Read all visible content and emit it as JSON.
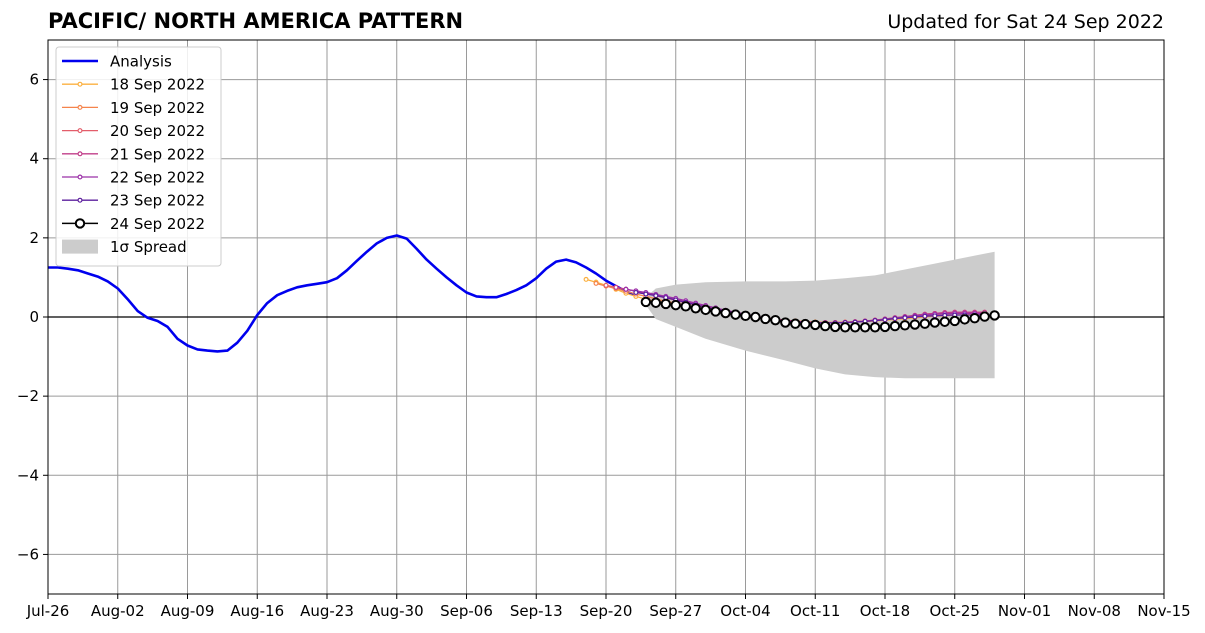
{
  "header": {
    "title": "PACIFIC/ NORTH AMERICA PATTERN",
    "updated": "Updated for Sat 24 Sep 2022"
  },
  "chart_data": {
    "type": "line",
    "title": "PACIFIC/ NORTH AMERICA PATTERN",
    "xlabel": "",
    "ylabel": "",
    "x_axis": {
      "type": "date",
      "range": [
        "2022-07-26",
        "2022-11-15"
      ],
      "tick_labels": [
        "Jul-26",
        "Aug-02",
        "Aug-09",
        "Aug-16",
        "Aug-23",
        "Aug-30",
        "Sep-06",
        "Sep-13",
        "Sep-20",
        "Sep-27",
        "Oct-04",
        "Oct-11",
        "Oct-18",
        "Oct-25",
        "Nov-01",
        "Nov-08",
        "Nov-15"
      ]
    },
    "y_axis": {
      "range": [
        -7,
        7
      ],
      "ticks": [
        6,
        4,
        2,
        0,
        -2,
        -4,
        -6
      ],
      "tick_labels": [
        "6",
        "4",
        "2",
        "0",
        "−2",
        "−4",
        "−6"
      ]
    },
    "grid": true,
    "zero_line": true,
    "legend_position": "top-left",
    "legend": [
      "Analysis",
      "18 Sep 2022",
      "19 Sep 2022",
      "20 Sep 2022",
      "21 Sep 2022",
      "22 Sep 2022",
      "23 Sep 2022",
      "24 Sep 2022",
      "1σ Spread"
    ],
    "series": [
      {
        "name": "Analysis",
        "color": "#0000ee",
        "style": "line",
        "x": [
          "2022-07-26",
          "2022-07-27",
          "2022-07-28",
          "2022-07-29",
          "2022-07-30",
          "2022-07-31",
          "2022-08-01",
          "2022-08-02",
          "2022-08-03",
          "2022-08-04",
          "2022-08-05",
          "2022-08-06",
          "2022-08-07",
          "2022-08-08",
          "2022-08-09",
          "2022-08-10",
          "2022-08-11",
          "2022-08-12",
          "2022-08-13",
          "2022-08-14",
          "2022-08-15",
          "2022-08-16",
          "2022-08-17",
          "2022-08-18",
          "2022-08-19",
          "2022-08-20",
          "2022-08-21",
          "2022-08-22",
          "2022-08-23",
          "2022-08-24",
          "2022-08-25",
          "2022-08-26",
          "2022-08-27",
          "2022-08-28",
          "2022-08-29",
          "2022-08-30",
          "2022-08-31",
          "2022-09-01",
          "2022-09-02",
          "2022-09-03",
          "2022-09-04",
          "2022-09-05",
          "2022-09-06",
          "2022-09-07",
          "2022-09-08",
          "2022-09-09",
          "2022-09-10",
          "2022-09-11",
          "2022-09-12",
          "2022-09-13",
          "2022-09-14",
          "2022-09-15",
          "2022-09-16",
          "2022-09-17",
          "2022-09-18",
          "2022-09-19",
          "2022-09-20",
          "2022-09-21",
          "2022-09-22",
          "2022-09-23"
        ],
        "y": [
          1.25,
          1.25,
          1.22,
          1.18,
          1.1,
          1.02,
          0.9,
          0.72,
          0.45,
          0.15,
          -0.02,
          -0.1,
          -0.25,
          -0.55,
          -0.72,
          -0.82,
          -0.85,
          -0.87,
          -0.85,
          -0.65,
          -0.35,
          0.05,
          0.35,
          0.55,
          0.66,
          0.75,
          0.8,
          0.84,
          0.88,
          0.98,
          1.18,
          1.42,
          1.65,
          1.86,
          2.0,
          2.06,
          1.98,
          1.72,
          1.45,
          1.22,
          1.0,
          0.8,
          0.62,
          0.52,
          0.5,
          0.5,
          0.58,
          0.68,
          0.8,
          0.98,
          1.22,
          1.4,
          1.45,
          1.38,
          1.25,
          1.1,
          0.92,
          0.78,
          0.65,
          0.55
        ]
      },
      {
        "name": "18 Sep 2022",
        "color": "#fbb040",
        "style": "markers-small",
        "x": [
          "2022-09-18",
          "2022-09-19",
          "2022-09-20",
          "2022-09-21",
          "2022-09-22",
          "2022-09-23",
          "2022-09-24",
          "2022-09-25",
          "2022-09-26",
          "2022-09-27",
          "2022-09-28",
          "2022-09-29",
          "2022-09-30",
          "2022-10-01",
          "2022-10-02",
          "2022-10-03",
          "2022-10-04",
          "2022-10-05",
          "2022-10-06",
          "2022-10-07",
          "2022-10-08",
          "2022-10-09",
          "2022-10-10",
          "2022-10-11",
          "2022-10-12",
          "2022-10-13",
          "2022-10-14",
          "2022-10-15",
          "2022-10-16",
          "2022-10-17",
          "2022-10-18",
          "2022-10-19",
          "2022-10-20",
          "2022-10-21",
          "2022-10-22",
          "2022-10-23",
          "2022-10-24",
          "2022-10-25",
          "2022-10-26",
          "2022-10-27",
          "2022-10-28"
        ],
        "y": [
          0.95,
          0.88,
          0.8,
          0.7,
          0.6,
          0.52,
          0.45,
          0.4,
          0.36,
          0.32,
          0.27,
          0.22,
          0.18,
          0.14,
          0.1,
          0.06,
          0.03,
          0.0,
          -0.03,
          -0.06,
          -0.08,
          -0.1,
          -0.12,
          -0.13,
          -0.14,
          -0.14,
          -0.14,
          -0.13,
          -0.12,
          -0.1,
          -0.08,
          -0.06,
          -0.04,
          -0.02,
          0.0,
          0.02,
          0.03,
          0.05,
          0.06,
          0.07,
          0.08
        ]
      },
      {
        "name": "19 Sep 2022",
        "color": "#f5844c",
        "style": "markers-small",
        "x": [
          "2022-09-19",
          "2022-09-20",
          "2022-09-21",
          "2022-09-22",
          "2022-09-23",
          "2022-09-24",
          "2022-09-25",
          "2022-09-26",
          "2022-09-27",
          "2022-09-28",
          "2022-09-29",
          "2022-09-30",
          "2022-10-01",
          "2022-10-02",
          "2022-10-03",
          "2022-10-04",
          "2022-10-05",
          "2022-10-06",
          "2022-10-07",
          "2022-10-08",
          "2022-10-09",
          "2022-10-10",
          "2022-10-11",
          "2022-10-12",
          "2022-10-13",
          "2022-10-14",
          "2022-10-15",
          "2022-10-16",
          "2022-10-17",
          "2022-10-18",
          "2022-10-19",
          "2022-10-20",
          "2022-10-21",
          "2022-10-22",
          "2022-10-23",
          "2022-10-24",
          "2022-10-25",
          "2022-10-26",
          "2022-10-27",
          "2022-10-28"
        ],
        "y": [
          0.85,
          0.78,
          0.72,
          0.65,
          0.58,
          0.52,
          0.46,
          0.4,
          0.35,
          0.3,
          0.25,
          0.2,
          0.16,
          0.12,
          0.08,
          0.04,
          0.01,
          -0.02,
          -0.05,
          -0.08,
          -0.1,
          -0.12,
          -0.13,
          -0.14,
          -0.14,
          -0.13,
          -0.12,
          -0.1,
          -0.08,
          -0.06,
          -0.03,
          0.0,
          0.02,
          0.04,
          0.06,
          0.08,
          0.09,
          0.1,
          0.1,
          0.1
        ]
      },
      {
        "name": "20 Sep 2022",
        "color": "#e35d6a",
        "style": "markers-small",
        "x": [
          "2022-09-20",
          "2022-09-21",
          "2022-09-22",
          "2022-09-23",
          "2022-09-24",
          "2022-09-25",
          "2022-09-26",
          "2022-09-27",
          "2022-09-28",
          "2022-09-29",
          "2022-09-30",
          "2022-10-01",
          "2022-10-02",
          "2022-10-03",
          "2022-10-04",
          "2022-10-05",
          "2022-10-06",
          "2022-10-07",
          "2022-10-08",
          "2022-10-09",
          "2022-10-10",
          "2022-10-11",
          "2022-10-12",
          "2022-10-13",
          "2022-10-14",
          "2022-10-15",
          "2022-10-16",
          "2022-10-17",
          "2022-10-18",
          "2022-10-19",
          "2022-10-20",
          "2022-10-21",
          "2022-10-22",
          "2022-10-23",
          "2022-10-24",
          "2022-10-25",
          "2022-10-26",
          "2022-10-27",
          "2022-10-28"
        ],
        "y": [
          0.8,
          0.75,
          0.7,
          0.65,
          0.6,
          0.54,
          0.48,
          0.42,
          0.36,
          0.3,
          0.25,
          0.2,
          0.15,
          0.1,
          0.06,
          0.02,
          -0.02,
          -0.05,
          -0.08,
          -0.11,
          -0.13,
          -0.14,
          -0.14,
          -0.14,
          -0.13,
          -0.12,
          -0.1,
          -0.08,
          -0.05,
          -0.02,
          0.01,
          0.04,
          0.07,
          0.09,
          0.11,
          0.12,
          0.12,
          0.12,
          0.12
        ]
      },
      {
        "name": "21 Sep 2022",
        "color": "#c13e8a",
        "style": "markers-small",
        "x": [
          "2022-09-21",
          "2022-09-22",
          "2022-09-23",
          "2022-09-24",
          "2022-09-25",
          "2022-09-26",
          "2022-09-27",
          "2022-09-28",
          "2022-09-29",
          "2022-09-30",
          "2022-10-01",
          "2022-10-02",
          "2022-10-03",
          "2022-10-04",
          "2022-10-05",
          "2022-10-06",
          "2022-10-07",
          "2022-10-08",
          "2022-10-09",
          "2022-10-10",
          "2022-10-11",
          "2022-10-12",
          "2022-10-13",
          "2022-10-14",
          "2022-10-15",
          "2022-10-16",
          "2022-10-17",
          "2022-10-18",
          "2022-10-19",
          "2022-10-20",
          "2022-10-21",
          "2022-10-22",
          "2022-10-23",
          "2022-10-24",
          "2022-10-25",
          "2022-10-26",
          "2022-10-27",
          "2022-10-28"
        ],
        "y": [
          0.75,
          0.7,
          0.65,
          0.6,
          0.55,
          0.5,
          0.44,
          0.38,
          0.32,
          0.26,
          0.2,
          0.15,
          0.1,
          0.05,
          0.01,
          -0.03,
          -0.07,
          -0.1,
          -0.12,
          -0.14,
          -0.15,
          -0.15,
          -0.15,
          -0.14,
          -0.12,
          -0.1,
          -0.08,
          -0.05,
          -0.02,
          0.01,
          0.04,
          0.07,
          0.09,
          0.11,
          0.12,
          0.12,
          0.12,
          0.12
        ]
      },
      {
        "name": "22 Sep 2022",
        "color": "#9b30a8",
        "style": "markers-small",
        "x": [
          "2022-09-22",
          "2022-09-23",
          "2022-09-24",
          "2022-09-25",
          "2022-09-26",
          "2022-09-27",
          "2022-09-28",
          "2022-09-29",
          "2022-09-30",
          "2022-10-01",
          "2022-10-02",
          "2022-10-03",
          "2022-10-04",
          "2022-10-05",
          "2022-10-06",
          "2022-10-07",
          "2022-10-08",
          "2022-10-09",
          "2022-10-10",
          "2022-10-11",
          "2022-10-12",
          "2022-10-13",
          "2022-10-14",
          "2022-10-15",
          "2022-10-16",
          "2022-10-17",
          "2022-10-18",
          "2022-10-19",
          "2022-10-20",
          "2022-10-21",
          "2022-10-22",
          "2022-10-23",
          "2022-10-24",
          "2022-10-25",
          "2022-10-26",
          "2022-10-27",
          "2022-10-28"
        ],
        "y": [
          0.7,
          0.66,
          0.62,
          0.57,
          0.52,
          0.47,
          0.41,
          0.35,
          0.29,
          0.23,
          0.17,
          0.12,
          0.07,
          0.02,
          -0.02,
          -0.06,
          -0.09,
          -0.11,
          -0.13,
          -0.14,
          -0.15,
          -0.15,
          -0.14,
          -0.13,
          -0.11,
          -0.09,
          -0.06,
          -0.03,
          0.0,
          0.03,
          0.05,
          0.07,
          0.08,
          0.09,
          0.09,
          0.09,
          0.08
        ]
      },
      {
        "name": "23 Sep 2022",
        "color": "#5c1f9e",
        "style": "markers-small",
        "x": [
          "2022-09-23",
          "2022-09-24",
          "2022-09-25",
          "2022-09-26",
          "2022-09-27",
          "2022-09-28",
          "2022-09-29",
          "2022-09-30",
          "2022-10-01",
          "2022-10-02",
          "2022-10-03",
          "2022-10-04",
          "2022-10-05",
          "2022-10-06",
          "2022-10-07",
          "2022-10-08",
          "2022-10-09",
          "2022-10-10",
          "2022-10-11",
          "2022-10-12",
          "2022-10-13",
          "2022-10-14",
          "2022-10-15",
          "2022-10-16",
          "2022-10-17",
          "2022-10-18",
          "2022-10-19",
          "2022-10-20",
          "2022-10-21",
          "2022-10-22",
          "2022-10-23",
          "2022-10-24",
          "2022-10-25",
          "2022-10-26",
          "2022-10-27",
          "2022-10-28"
        ],
        "y": [
          0.62,
          0.58,
          0.54,
          0.49,
          0.43,
          0.37,
          0.31,
          0.25,
          0.19,
          0.14,
          0.09,
          0.04,
          0.0,
          -0.04,
          -0.07,
          -0.1,
          -0.12,
          -0.14,
          -0.15,
          -0.15,
          -0.15,
          -0.14,
          -0.13,
          -0.11,
          -0.09,
          -0.07,
          -0.04,
          -0.02,
          0.0,
          0.02,
          0.03,
          0.04,
          0.05,
          0.05,
          0.05,
          0.05
        ]
      },
      {
        "name": "24 Sep 2022",
        "color": "#000000",
        "style": "markers-large",
        "x": [
          "2022-09-24",
          "2022-09-25",
          "2022-09-26",
          "2022-09-27",
          "2022-09-28",
          "2022-09-29",
          "2022-09-30",
          "2022-10-01",
          "2022-10-02",
          "2022-10-03",
          "2022-10-04",
          "2022-10-05",
          "2022-10-06",
          "2022-10-07",
          "2022-10-08",
          "2022-10-09",
          "2022-10-10",
          "2022-10-11",
          "2022-10-12",
          "2022-10-13",
          "2022-10-14",
          "2022-10-15",
          "2022-10-16",
          "2022-10-17",
          "2022-10-18",
          "2022-10-19",
          "2022-10-20",
          "2022-10-21",
          "2022-10-22",
          "2022-10-23",
          "2022-10-24",
          "2022-10-25",
          "2022-10-26",
          "2022-10-27",
          "2022-10-28",
          "2022-10-29"
        ],
        "y": [
          0.38,
          0.36,
          0.33,
          0.3,
          0.27,
          0.22,
          0.18,
          0.14,
          0.1,
          0.06,
          0.03,
          0.0,
          -0.05,
          -0.08,
          -0.14,
          -0.17,
          -0.18,
          -0.2,
          -0.23,
          -0.25,
          -0.26,
          -0.26,
          -0.26,
          -0.26,
          -0.25,
          -0.23,
          -0.21,
          -0.19,
          -0.17,
          -0.14,
          -0.12,
          -0.1,
          -0.06,
          -0.03,
          0.01,
          0.04
        ]
      }
    ],
    "spread": {
      "name": "1σ Spread",
      "color": "#cccccc",
      "x": [
        "2022-09-24",
        "2022-09-25",
        "2022-09-27",
        "2022-09-30",
        "2022-10-04",
        "2022-10-08",
        "2022-10-11",
        "2022-10-14",
        "2022-10-17",
        "2022-10-20",
        "2022-10-23",
        "2022-10-26",
        "2022-10-29"
      ],
      "upper": [
        0.5,
        0.72,
        0.82,
        0.88,
        0.9,
        0.9,
        0.92,
        0.98,
        1.05,
        1.2,
        1.35,
        1.5,
        1.65
      ],
      "lower": [
        0.3,
        -0.05,
        -0.25,
        -0.55,
        -0.85,
        -1.1,
        -1.3,
        -1.45,
        -1.52,
        -1.55,
        -1.55,
        -1.55,
        -1.55
      ]
    }
  }
}
